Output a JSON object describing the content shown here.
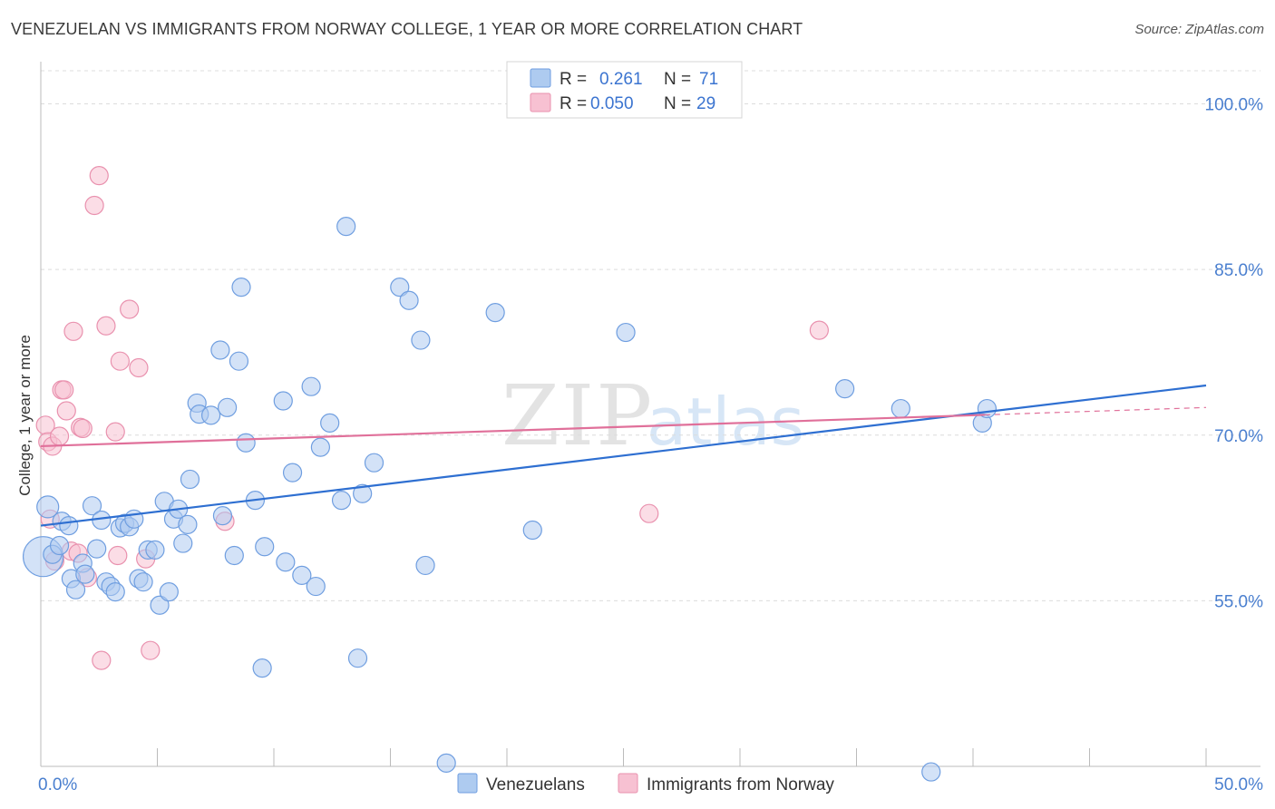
{
  "title": "VENEZUELAN VS IMMIGRANTS FROM NORWAY COLLEGE, 1 YEAR OR MORE CORRELATION CHART",
  "source": "Source: ZipAtlas.com",
  "watermark": {
    "zip": "ZIP",
    "atlas": "atlas"
  },
  "legend": {
    "r_label": "R =",
    "n_label": "N =",
    "series1": {
      "r": "0.261",
      "n": "71"
    },
    "series2": {
      "r": "0.050",
      "n": "29"
    }
  },
  "colors": {
    "blue_fill": "#aecbf0",
    "blue_stroke": "#6f9ee0",
    "blue_line": "#2e6fd1",
    "pink_fill": "#f7c1d2",
    "pink_stroke": "#e991ae",
    "pink_line": "#e0709a",
    "grid": "#dcdcdc",
    "tick_text": "#4a7fcf"
  },
  "chart_data": {
    "type": "scatter",
    "title": "VENEZUELAN VS IMMIGRANTS FROM NORWAY COLLEGE, 1 YEAR OR MORE CORRELATION CHART",
    "xlabel": "",
    "ylabel": "College, 1 year or more",
    "xlim": [
      0,
      50
    ],
    "ylim": [
      40,
      103
    ],
    "x_tick_labels": [
      "0.0%",
      "50.0%"
    ],
    "y_ticks": [
      55,
      70,
      85,
      100
    ],
    "y_tick_labels": [
      "55.0%",
      "70.0%",
      "85.0%",
      "100.0%"
    ],
    "grid": true,
    "series": [
      {
        "name": "Venezuelans",
        "r": 0.261,
        "n": 71,
        "trend": {
          "x": [
            0,
            50
          ],
          "y": [
            61.8,
            74.5
          ],
          "dashed_from": null
        },
        "points": [
          [
            0.1,
            59.0,
            22
          ],
          [
            0.3,
            63.5,
            12
          ],
          [
            0.5,
            59.2,
            10
          ],
          [
            0.8,
            60.0,
            10
          ],
          [
            0.9,
            62.2,
            10
          ],
          [
            1.2,
            61.8,
            10
          ],
          [
            1.3,
            57.0,
            10
          ],
          [
            1.5,
            56.0,
            10
          ],
          [
            1.8,
            58.4,
            10
          ],
          [
            1.9,
            57.4,
            10
          ],
          [
            2.2,
            63.6,
            10
          ],
          [
            2.4,
            59.7,
            10
          ],
          [
            2.6,
            62.3,
            10
          ],
          [
            2.8,
            56.7,
            10
          ],
          [
            3.0,
            56.3,
            10
          ],
          [
            3.2,
            55.8,
            10
          ],
          [
            3.4,
            61.6,
            10
          ],
          [
            3.6,
            62.0,
            10
          ],
          [
            3.8,
            61.7,
            10
          ],
          [
            4.0,
            62.4,
            10
          ],
          [
            4.2,
            57.0,
            10
          ],
          [
            4.4,
            56.7,
            10
          ],
          [
            4.6,
            59.6,
            10
          ],
          [
            4.9,
            59.6,
            10
          ],
          [
            5.1,
            54.6,
            10
          ],
          [
            5.3,
            64.0,
            10
          ],
          [
            5.5,
            55.8,
            10
          ],
          [
            5.7,
            62.4,
            10
          ],
          [
            5.9,
            63.3,
            10
          ],
          [
            6.1,
            60.2,
            10
          ],
          [
            6.3,
            61.9,
            10
          ],
          [
            6.4,
            66.0,
            10
          ],
          [
            6.7,
            72.9,
            10
          ],
          [
            6.8,
            71.9,
            10
          ],
          [
            7.3,
            71.8,
            10
          ],
          [
            7.7,
            77.7,
            10
          ],
          [
            7.8,
            62.7,
            10
          ],
          [
            8.0,
            72.5,
            10
          ],
          [
            8.3,
            59.1,
            10
          ],
          [
            8.5,
            76.7,
            10
          ],
          [
            8.6,
            83.4,
            10
          ],
          [
            8.8,
            69.3,
            10
          ],
          [
            9.2,
            64.1,
            10
          ],
          [
            9.5,
            48.9,
            10
          ],
          [
            9.6,
            59.9,
            10
          ],
          [
            10.4,
            73.1,
            10
          ],
          [
            10.5,
            58.5,
            10
          ],
          [
            10.8,
            66.6,
            10
          ],
          [
            11.2,
            57.3,
            10
          ],
          [
            11.6,
            74.4,
            10
          ],
          [
            11.8,
            56.3,
            10
          ],
          [
            12.0,
            68.9,
            10
          ],
          [
            12.4,
            71.1,
            10
          ],
          [
            12.9,
            64.1,
            10
          ],
          [
            13.1,
            88.9,
            10
          ],
          [
            13.6,
            49.8,
            10
          ],
          [
            13.8,
            64.7,
            10
          ],
          [
            14.3,
            67.5,
            10
          ],
          [
            15.4,
            83.4,
            10
          ],
          [
            15.8,
            82.2,
            10
          ],
          [
            16.3,
            78.6,
            10
          ],
          [
            16.5,
            58.2,
            10
          ],
          [
            17.4,
            40.3,
            10
          ],
          [
            19.5,
            81.1,
            10
          ],
          [
            21.1,
            61.4,
            10
          ],
          [
            25.1,
            79.3,
            10
          ],
          [
            34.5,
            74.2,
            10
          ],
          [
            36.9,
            72.4,
            10
          ],
          [
            38.2,
            39.5,
            10
          ],
          [
            40.4,
            71.1,
            10
          ],
          [
            40.6,
            72.4,
            10
          ]
        ]
      },
      {
        "name": "Immigrants from Norway",
        "r": 0.05,
        "n": 29,
        "trend": {
          "x": [
            0,
            50
          ],
          "y": [
            69.0,
            72.5
          ],
          "dashed_from": 40.5
        },
        "points": [
          [
            0.2,
            70.9,
            10
          ],
          [
            0.3,
            69.4,
            10
          ],
          [
            0.4,
            62.4,
            10
          ],
          [
            0.5,
            69.0,
            10
          ],
          [
            0.6,
            58.6,
            10
          ],
          [
            0.8,
            69.9,
            10
          ],
          [
            0.9,
            74.1,
            10
          ],
          [
            1.0,
            74.1,
            10
          ],
          [
            1.1,
            72.2,
            10
          ],
          [
            1.3,
            59.5,
            10
          ],
          [
            1.4,
            79.4,
            10
          ],
          [
            1.6,
            59.3,
            10
          ],
          [
            1.7,
            70.7,
            10
          ],
          [
            1.8,
            70.6,
            10
          ],
          [
            2.0,
            57.1,
            10
          ],
          [
            2.3,
            90.8,
            10
          ],
          [
            2.5,
            93.5,
            10
          ],
          [
            2.6,
            49.6,
            10
          ],
          [
            2.8,
            79.9,
            10
          ],
          [
            3.2,
            70.3,
            10
          ],
          [
            3.3,
            59.1,
            10
          ],
          [
            3.4,
            76.7,
            10
          ],
          [
            3.8,
            81.4,
            10
          ],
          [
            4.2,
            76.1,
            10
          ],
          [
            4.5,
            58.8,
            10
          ],
          [
            4.7,
            50.5,
            10
          ],
          [
            7.9,
            62.2,
            10
          ],
          [
            26.1,
            62.9,
            10
          ],
          [
            33.4,
            79.5,
            10
          ]
        ]
      }
    ]
  },
  "bottom_legend": {
    "series1": "Venezuelans",
    "series2": "Immigrants from Norway"
  }
}
